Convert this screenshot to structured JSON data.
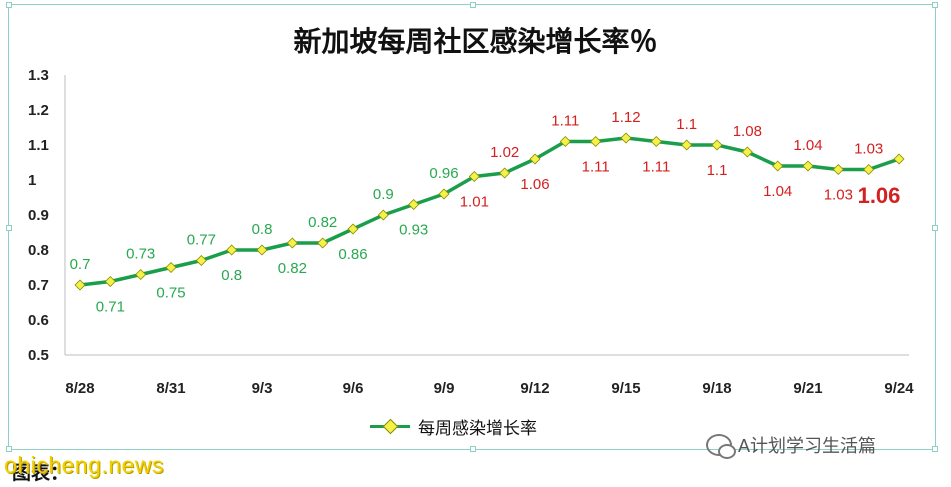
{
  "chart_data": {
    "type": "line",
    "title": "新加坡每周社区感染增长率％",
    "xlabel": "",
    "ylabel": "",
    "ylim": [
      0.5,
      1.3
    ],
    "yticks": [
      "0.5",
      "0.6",
      "0.7",
      "0.8",
      "0.9",
      "1",
      "1.1",
      "1.2",
      "1.3"
    ],
    "x": [
      "8/28",
      "8/29",
      "8/30",
      "8/31",
      "9/1",
      "9/2",
      "9/3",
      "9/4",
      "9/5",
      "9/6",
      "9/7",
      "9/8",
      "9/9",
      "9/10",
      "9/11",
      "9/12",
      "9/13",
      "9/14",
      "9/15",
      "9/16",
      "9/17",
      "9/18",
      "9/19",
      "9/20",
      "9/21",
      "9/22",
      "9/23",
      "9/24"
    ],
    "xtick_labels": [
      "8/28",
      "8/31",
      "9/3",
      "9/6",
      "9/9",
      "9/12",
      "9/15",
      "9/18",
      "9/21",
      "9/24"
    ],
    "grid": false,
    "legend_position": "bottom",
    "series": [
      {
        "name": "每周感染增长率",
        "color": "#1a9e4b",
        "marker_color": "#f2f24a",
        "values": [
          0.7,
          0.71,
          0.73,
          0.75,
          0.77,
          0.8,
          0.8,
          0.82,
          0.82,
          0.86,
          0.9,
          0.93,
          0.96,
          1.01,
          1.02,
          1.06,
          1.11,
          1.11,
          1.12,
          1.11,
          1.1,
          1.1,
          1.08,
          1.04,
          1.04,
          1.03,
          1.03,
          1.06
        ],
        "labels": [
          "0.7",
          "0.71",
          "0.73",
          "0.75",
          "0.77",
          "0.8",
          "0.8",
          "0.82",
          "0.82",
          "0.86",
          "0.9",
          "0.93",
          "0.96",
          "1.01",
          "1.02",
          "1.06",
          "1.11",
          "1.11",
          "1.12",
          "1.11",
          "1.1",
          "1.1",
          "1.08",
          "1.04",
          "1.04",
          "1.03",
          "1.03",
          "1.06"
        ],
        "label_colors": [
          "#27a94f",
          "#27a94f",
          "#27a94f",
          "#27a94f",
          "#27a94f",
          "#27a94f",
          "#27a94f",
          "#27a94f",
          "#27a94f",
          "#27a94f",
          "#27a94f",
          "#27a94f",
          "#27a94f",
          "#d42020",
          "#d42020",
          "#d42020",
          "#d42020",
          "#d42020",
          "#d42020",
          "#d42020",
          "#d42020",
          "#d42020",
          "#d42020",
          "#d42020",
          "#d42020",
          "#d42020",
          "#d42020",
          "#d42020"
        ]
      }
    ]
  },
  "legend_label": "每周感染增长率",
  "wechat_account": "A计划学习生活篇",
  "caption": "图表：",
  "watermark": "ohicheng.news"
}
